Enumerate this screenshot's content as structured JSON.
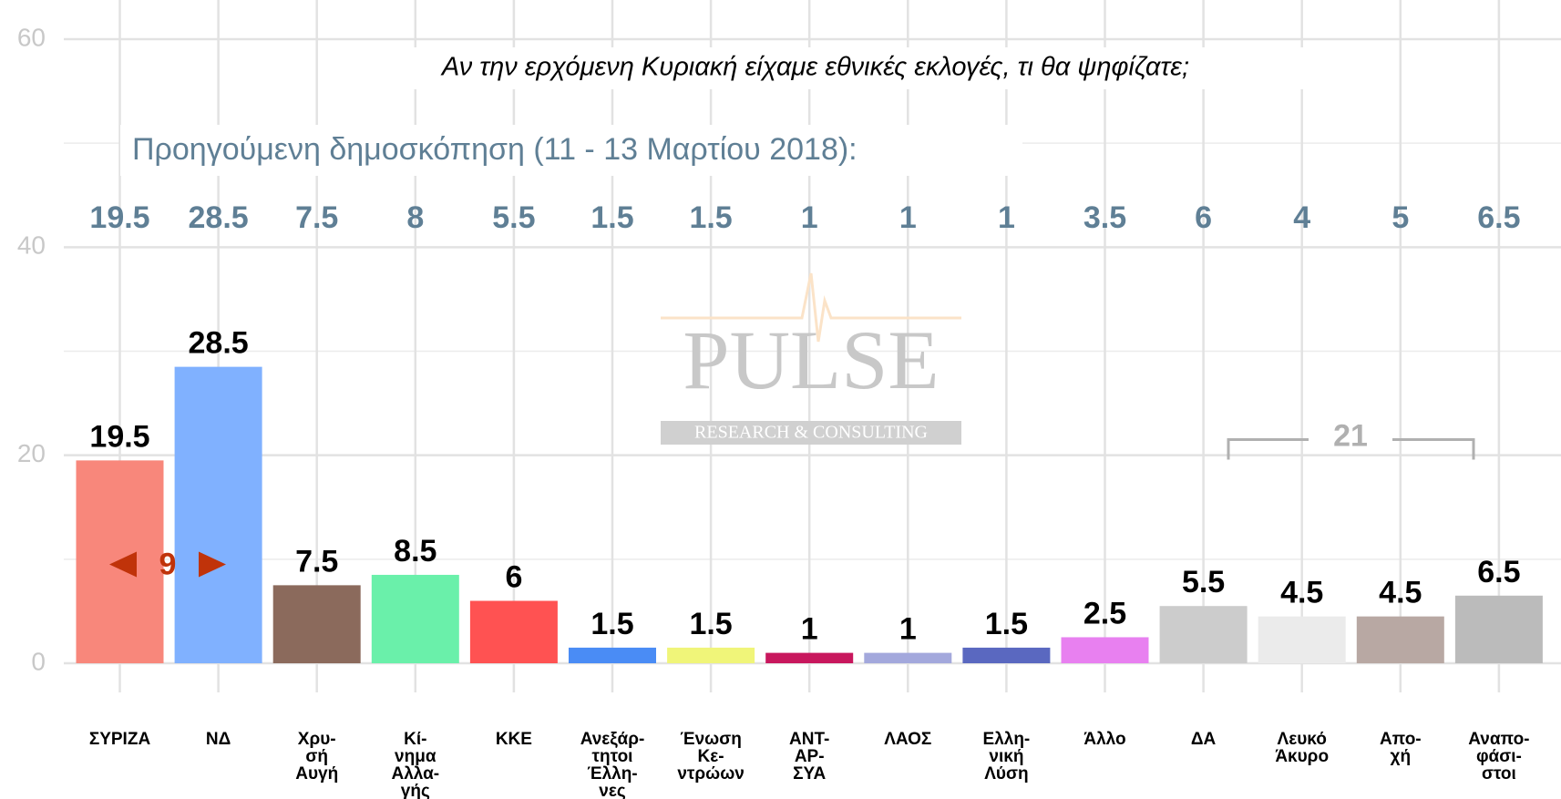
{
  "chart_data": {
    "type": "bar",
    "title": "Αν την ερχόμενη Κυριακή είχαμε εθνικές εκλογές, τι θα ψηφίζατε;",
    "categories": [
      "ΣΥΡΙΖΑ",
      "ΝΔ",
      "Χρυ-\nσή\nΑυγή",
      "Κί-\nνημα\nΑλλα-\nγής",
      "ΚΚΕ",
      "Ανεξάρ-\nτητοι\nΈλλη-\nνες",
      "Ένωση\nΚε-\nντρώων",
      "ΑΝΤ-\nΑΡ-\nΣΥΑ",
      "ΛΑΟΣ",
      "Ελλη-\nνική\nΛύση",
      "Άλλο",
      "ΔΑ",
      "Λευκό\nΆκυρο",
      "Απο-\nχή",
      "Αναπο-\nφάσι-\nστοι"
    ],
    "values": [
      19.5,
      28.5,
      7.5,
      8.5,
      6,
      1.5,
      1.5,
      1,
      1,
      1.5,
      2.5,
      5.5,
      4.5,
      4.5,
      6.5
    ],
    "colors": [
      "#f8877b",
      "#80b1ff",
      "#8b6a5c",
      "#6af0aa",
      "#ff5252",
      "#4a8cf5",
      "#f0f579",
      "#c8175d",
      "#a3a8dc",
      "#5a68c0",
      "#e880f0",
      "#cccccc",
      "#ebebeb",
      "#b8a8a3",
      "#bbbbbb"
    ],
    "previous": {
      "label": "Προηγούμενη δημοσκόπηση (11 - 13 Μαρτίου 2018):",
      "values": [
        19.5,
        28.5,
        7.5,
        8,
        5.5,
        1.5,
        1.5,
        1,
        1,
        1,
        3.5,
        6,
        4,
        5,
        6.5
      ]
    },
    "annotations": {
      "gap": "9",
      "bracket": "21"
    },
    "watermark": {
      "name": "PULSE",
      "sub": "RESEARCH & CONSULTING"
    },
    "ylim": [
      0,
      60
    ],
    "yticks": [
      0,
      20,
      40,
      60
    ],
    "grid": true
  }
}
